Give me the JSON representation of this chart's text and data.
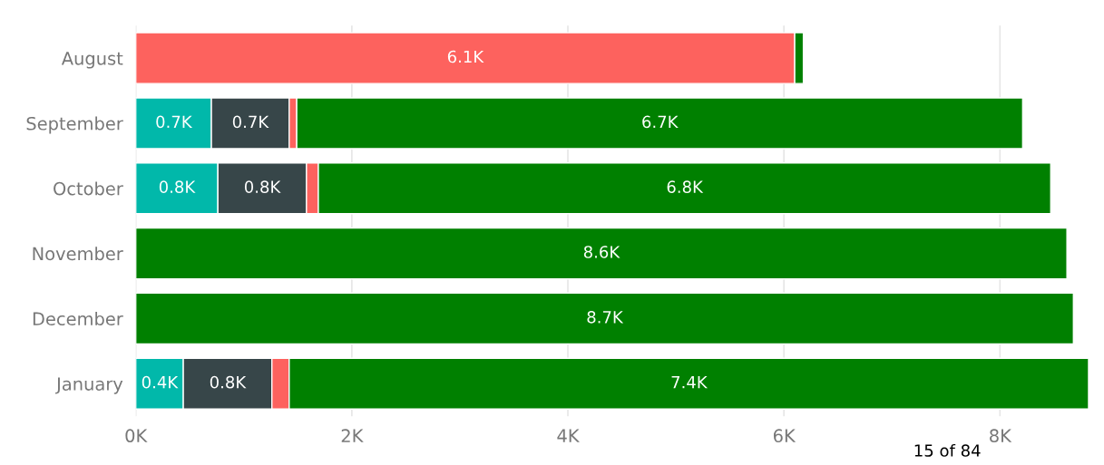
{
  "chart_data": {
    "type": "bar",
    "orientation": "horizontal",
    "stacked": true,
    "categories": [
      "August",
      "September",
      "October",
      "November",
      "December",
      "January"
    ],
    "series": [
      {
        "color": "#01b8aa",
        "values": [
          0,
          700,
          760,
          0,
          0,
          440
        ],
        "value_labels": [
          null,
          "0.7K",
          "0.8K",
          null,
          null,
          "0.4K"
        ]
      },
      {
        "color": "#374649",
        "values": [
          0,
          720,
          820,
          0,
          0,
          820
        ],
        "value_labels": [
          null,
          "0.7K",
          "0.8K",
          null,
          null,
          "0.8K"
        ]
      },
      {
        "color": "#fd625e",
        "values": [
          6100,
          70,
          110,
          0,
          0,
          160
        ],
        "value_labels": [
          "6.1K",
          null,
          null,
          null,
          null,
          null
        ]
      },
      {
        "color": "#008000",
        "values": [
          80,
          6720,
          6780,
          8620,
          8680,
          7400
        ],
        "value_labels": [
          null,
          "6.7K",
          "6.8K",
          "8.6K",
          "8.7K",
          "7.4K"
        ]
      }
    ],
    "xlim": [
      0,
      8820
    ],
    "xticks": [
      {
        "value": 0,
        "label": "0K"
      },
      {
        "value": 2000,
        "label": "2K"
      },
      {
        "value": 4000,
        "label": "4K"
      },
      {
        "value": 6000,
        "label": "6K"
      },
      {
        "value": 8000,
        "label": "8K"
      }
    ],
    "grid": "x",
    "annotations": [
      "15 of 84"
    ]
  }
}
